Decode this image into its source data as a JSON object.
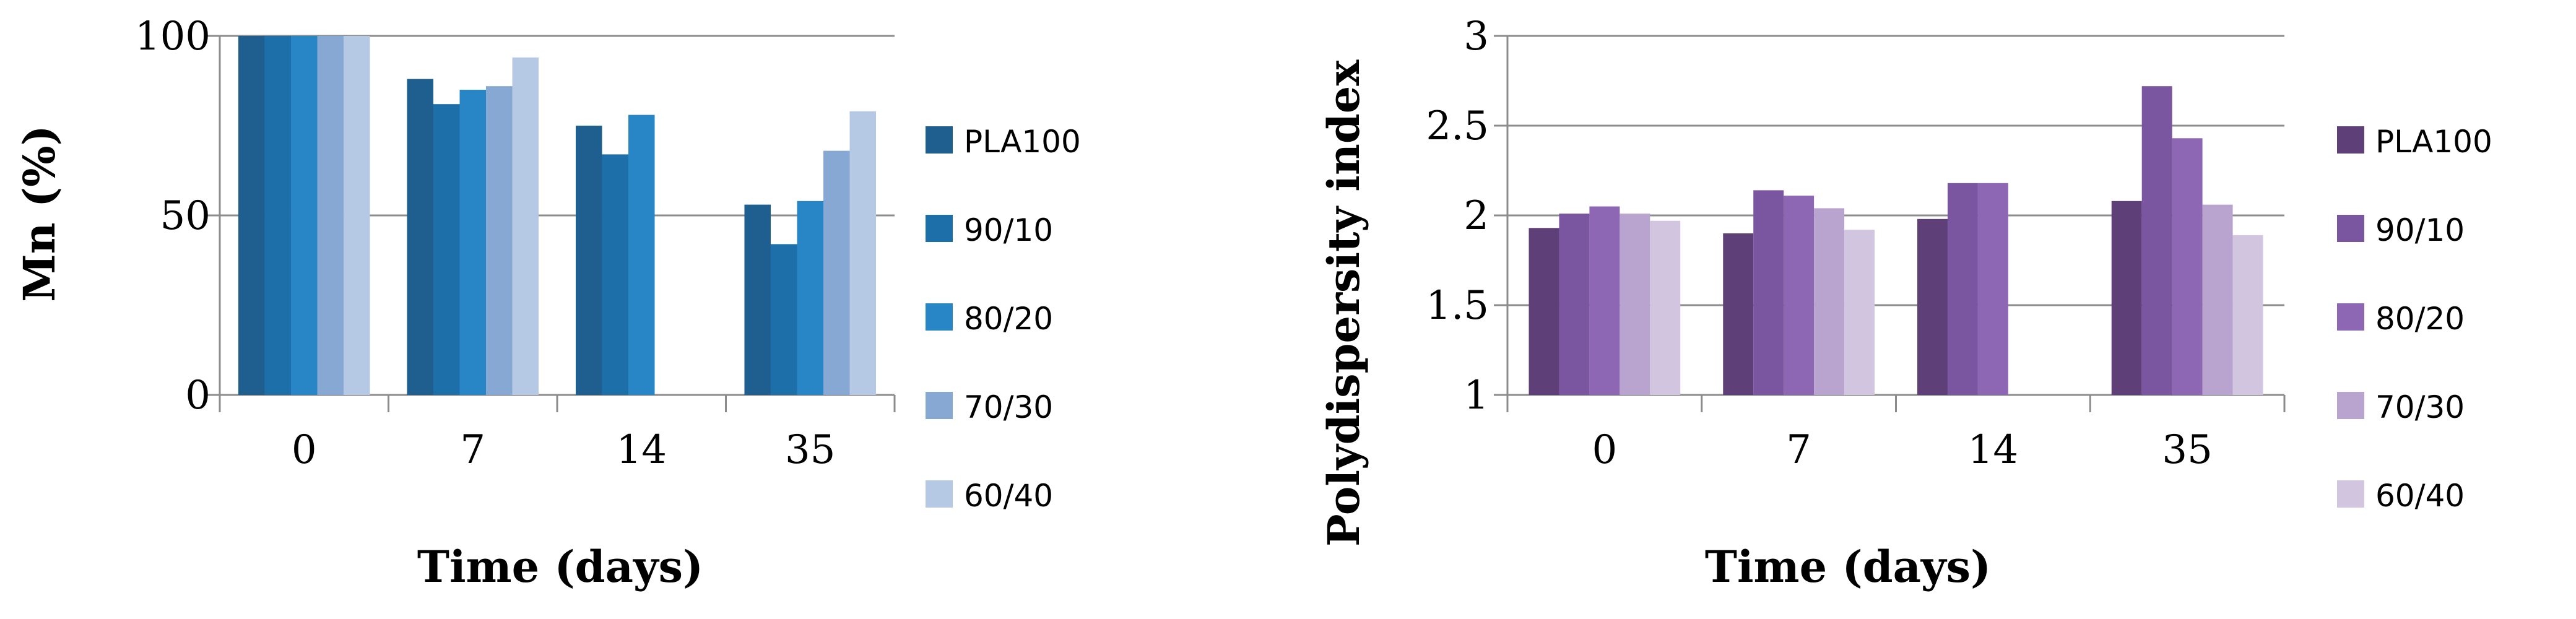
{
  "chart_data": [
    {
      "type": "bar",
      "categories": [
        "0",
        "7",
        "14",
        "35"
      ],
      "series": [
        {
          "name": "PLA100",
          "color": "#1f5f8f",
          "values": [
            100,
            88,
            75,
            53
          ]
        },
        {
          "name": "90/10",
          "color": "#1c6fa8",
          "values": [
            100,
            81,
            67,
            42
          ]
        },
        {
          "name": "80/20",
          "color": "#2986c6",
          "values": [
            100,
            85,
            78,
            54
          ]
        },
        {
          "name": "70/30",
          "color": "#86a8d2",
          "values": [
            100,
            86,
            null,
            68
          ]
        },
        {
          "name": "60/40",
          "color": "#b6c9e4",
          "values": [
            100,
            94,
            null,
            79
          ]
        }
      ],
      "xlabel": "Time (days)",
      "ylabel": "Mn (%)",
      "ylim": [
        0,
        100
      ],
      "yticks": [
        "0",
        "50",
        "100"
      ],
      "grid": true,
      "legend": "right"
    },
    {
      "type": "bar",
      "categories": [
        "0",
        "7",
        "14",
        "35"
      ],
      "series": [
        {
          "name": "PLA100",
          "color": "#5e3f78",
          "values": [
            1.93,
            1.9,
            1.98,
            2.08
          ]
        },
        {
          "name": "90/10",
          "color": "#7a55a0",
          "values": [
            2.01,
            2.14,
            2.18,
            2.72
          ]
        },
        {
          "name": "80/20",
          "color": "#8e67b4",
          "values": [
            2.05,
            2.11,
            2.18,
            2.43
          ]
        },
        {
          "name": "70/30",
          "color": "#b9a4d0",
          "values": [
            2.01,
            2.04,
            null,
            2.06
          ]
        },
        {
          "name": "60/40",
          "color": "#d2c5e0",
          "values": [
            1.97,
            1.92,
            null,
            1.89
          ]
        }
      ],
      "xlabel": "Time (days)",
      "ylabel": "Polydispersity index",
      "ylim": [
        1,
        3
      ],
      "yticks": [
        "1",
        "1.5",
        "2",
        "2.5",
        "3"
      ],
      "grid": true,
      "legend": "right"
    }
  ]
}
